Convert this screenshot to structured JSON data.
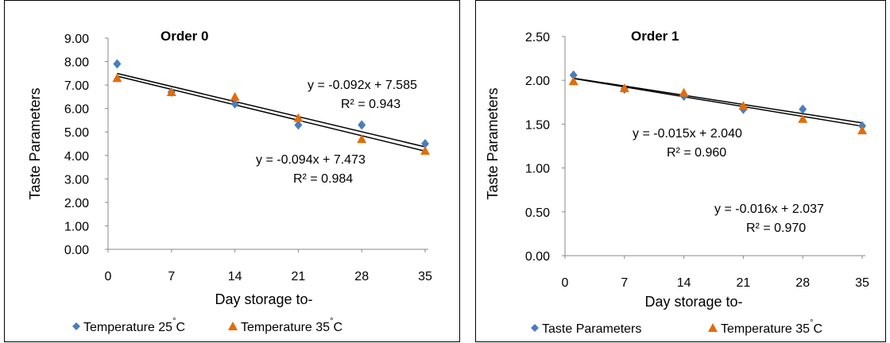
{
  "chart_data": [
    {
      "type": "scatter",
      "title": "Order 0",
      "xlabel": "Day storage to-",
      "ylabel": "Taste Parameters",
      "xlim": [
        0,
        35
      ],
      "ylim": [
        0,
        9
      ],
      "x_ticks": [
        "0",
        "7",
        "14",
        "21",
        "28",
        "35"
      ],
      "y_ticks": [
        "0.00",
        "1.00",
        "2.00",
        "3.00",
        "4.00",
        "5.00",
        "6.00",
        "7.00",
        "8.00",
        "9.00"
      ],
      "grid": false,
      "legend_position": "bottom",
      "series": [
        {
          "name": "Temperature 25",
          "name_sup": "°",
          "name_suffix": "C",
          "marker": "diamond",
          "color": "#4a7ebb",
          "x": [
            1,
            7,
            14,
            21,
            28,
            35
          ],
          "y": [
            7.9,
            6.7,
            6.2,
            5.3,
            5.3,
            4.5
          ]
        },
        {
          "name": "Temperature 35",
          "name_sup": "°",
          "name_suffix": "C",
          "marker": "triangle",
          "color": "#e36c09",
          "x": [
            1,
            7,
            14,
            21,
            28,
            35
          ],
          "y": [
            7.3,
            6.7,
            6.5,
            5.6,
            4.7,
            4.2
          ]
        }
      ],
      "trendlines": [
        {
          "slope": -0.092,
          "intercept": 7.585,
          "x": [
            1,
            35
          ]
        },
        {
          "slope": -0.094,
          "intercept": 7.473,
          "x": [
            1,
            35
          ]
        }
      ],
      "annotations": [
        {
          "eq": "y = -0.092x + 7.585",
          "r2": "R² = 0.943"
        },
        {
          "eq": "y = -0.094x + 7.473",
          "r2": "R² = 0.984"
        }
      ]
    },
    {
      "type": "scatter",
      "title": "Order 1",
      "xlabel": "Day storage to-",
      "ylabel": "Taste Parameters",
      "xlim": [
        0,
        35
      ],
      "ylim": [
        0,
        2.5
      ],
      "x_ticks": [
        "0",
        "7",
        "14",
        "21",
        "28",
        "35"
      ],
      "y_ticks": [
        "0.00",
        "0.50",
        "1.00",
        "1.50",
        "2.00",
        "2.50"
      ],
      "grid": false,
      "legend_position": "bottom",
      "series": [
        {
          "name": "Taste Parameters",
          "name_sup": "",
          "name_suffix": "",
          "marker": "diamond",
          "color": "#4a7ebb",
          "x": [
            1,
            7,
            14,
            21,
            28,
            35
          ],
          "y": [
            2.06,
            1.9,
            1.82,
            1.67,
            1.67,
            1.48
          ]
        },
        {
          "name": "Temperature 35",
          "name_sup": "°",
          "name_suffix": "C",
          "marker": "triangle",
          "color": "#e36c09",
          "x": [
            1,
            7,
            14,
            21,
            28,
            35
          ],
          "y": [
            1.99,
            1.91,
            1.86,
            1.71,
            1.56,
            1.43
          ]
        }
      ],
      "trendlines": [
        {
          "slope": -0.015,
          "intercept": 2.04,
          "x": [
            1,
            35
          ]
        },
        {
          "slope": -0.016,
          "intercept": 2.037,
          "x": [
            1,
            35
          ]
        }
      ],
      "annotations": [
        {
          "eq": "y = -0.015x + 2.040",
          "r2": "R² = 0.960"
        },
        {
          "eq": "y = -0.016x + 2.037",
          "r2": "R² = 0.970"
        }
      ]
    }
  ]
}
